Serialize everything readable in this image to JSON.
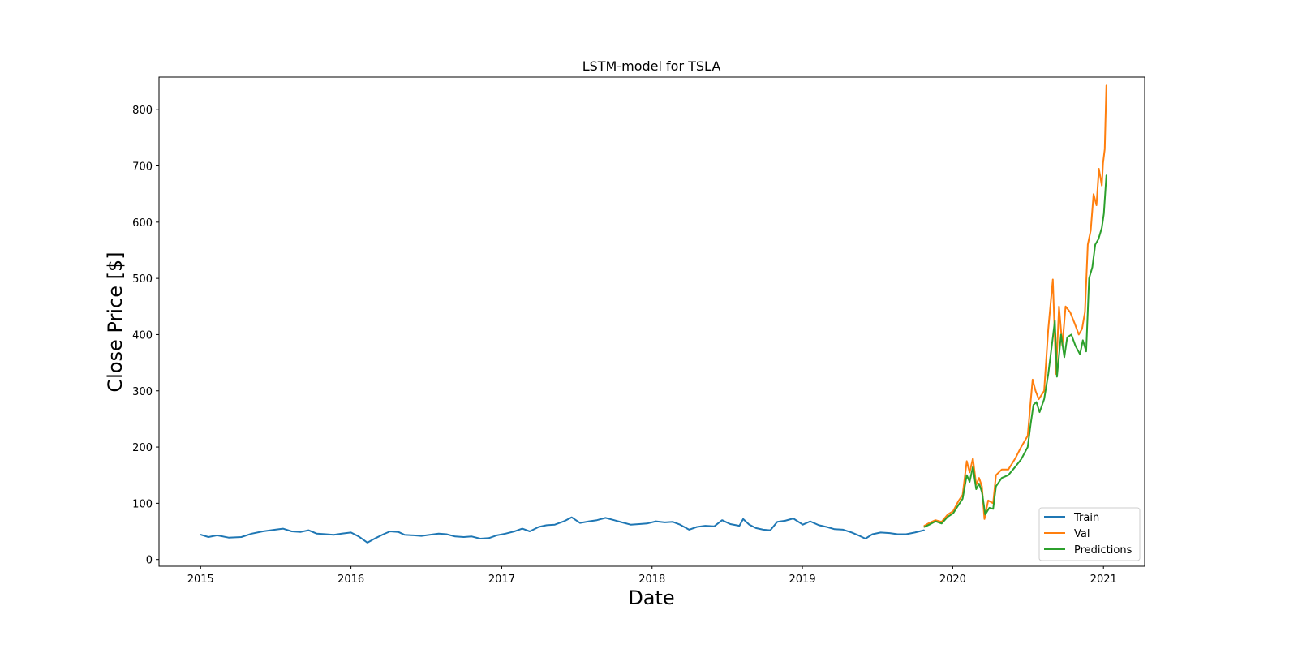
{
  "chart_data": {
    "type": "line",
    "title": "LSTM-model for TSLA",
    "xlabel": "Date",
    "ylabel": "Close Price [$]",
    "x_ticks": [
      "2015",
      "2016",
      "2017",
      "2018",
      "2019",
      "2020",
      "2021"
    ],
    "y_ticks": [
      0,
      100,
      200,
      300,
      400,
      500,
      600,
      700,
      800
    ],
    "xlim": [
      "2014-09-22",
      "2021-04-11"
    ],
    "ylim": [
      -12,
      858
    ],
    "grid": false,
    "legend_position": "lower-right",
    "series": [
      {
        "name": "Train",
        "color": "#1f77b4",
        "points": [
          [
            "2015-01-02",
            44
          ],
          [
            "2015-01-20",
            40
          ],
          [
            "2015-02-10",
            43
          ],
          [
            "2015-03-10",
            39
          ],
          [
            "2015-04-10",
            40
          ],
          [
            "2015-05-05",
            46
          ],
          [
            "2015-06-01",
            50
          ],
          [
            "2015-07-01",
            53
          ],
          [
            "2015-07-20",
            55
          ],
          [
            "2015-08-10",
            50
          ],
          [
            "2015-09-01",
            49
          ],
          [
            "2015-09-20",
            52
          ],
          [
            "2015-10-10",
            46
          ],
          [
            "2015-11-01",
            45
          ],
          [
            "2015-11-20",
            44
          ],
          [
            "2015-12-10",
            46
          ],
          [
            "2016-01-01",
            48
          ],
          [
            "2016-01-20",
            41
          ],
          [
            "2016-02-10",
            30
          ],
          [
            "2016-03-01",
            38
          ],
          [
            "2016-03-20",
            45
          ],
          [
            "2016-04-05",
            50
          ],
          [
            "2016-04-25",
            49
          ],
          [
            "2016-05-10",
            44
          ],
          [
            "2016-06-01",
            43
          ],
          [
            "2016-06-20",
            42
          ],
          [
            "2016-07-10",
            44
          ],
          [
            "2016-08-01",
            46
          ],
          [
            "2016-08-20",
            45
          ],
          [
            "2016-09-10",
            41
          ],
          [
            "2016-10-01",
            40
          ],
          [
            "2016-10-20",
            41
          ],
          [
            "2016-11-10",
            37
          ],
          [
            "2016-12-01",
            38
          ],
          [
            "2016-12-20",
            43
          ],
          [
            "2017-01-10",
            46
          ],
          [
            "2017-02-01",
            50
          ],
          [
            "2017-02-20",
            55
          ],
          [
            "2017-03-10",
            50
          ],
          [
            "2017-04-01",
            58
          ],
          [
            "2017-04-20",
            61
          ],
          [
            "2017-05-10",
            62
          ],
          [
            "2017-06-01",
            68
          ],
          [
            "2017-06-20",
            75
          ],
          [
            "2017-07-10",
            65
          ],
          [
            "2017-08-01",
            68
          ],
          [
            "2017-08-20",
            70
          ],
          [
            "2017-09-10",
            74
          ],
          [
            "2017-10-01",
            70
          ],
          [
            "2017-10-20",
            66
          ],
          [
            "2017-11-10",
            62
          ],
          [
            "2017-12-01",
            63
          ],
          [
            "2017-12-20",
            64
          ],
          [
            "2018-01-10",
            68
          ],
          [
            "2018-02-01",
            66
          ],
          [
            "2018-02-20",
            67
          ],
          [
            "2018-03-10",
            62
          ],
          [
            "2018-04-01",
            53
          ],
          [
            "2018-04-20",
            58
          ],
          [
            "2018-05-10",
            60
          ],
          [
            "2018-06-01",
            59
          ],
          [
            "2018-06-20",
            70
          ],
          [
            "2018-07-10",
            63
          ],
          [
            "2018-08-01",
            60
          ],
          [
            "2018-08-10",
            72
          ],
          [
            "2018-08-25",
            62
          ],
          [
            "2018-09-10",
            56
          ],
          [
            "2018-09-28",
            53
          ],
          [
            "2018-10-15",
            52
          ],
          [
            "2018-11-01",
            67
          ],
          [
            "2018-11-20",
            69
          ],
          [
            "2018-12-10",
            73
          ],
          [
            "2019-01-02",
            62
          ],
          [
            "2019-01-20",
            68
          ],
          [
            "2019-02-10",
            61
          ],
          [
            "2019-03-01",
            58
          ],
          [
            "2019-03-20",
            54
          ],
          [
            "2019-04-10",
            53
          ],
          [
            "2019-05-01",
            48
          ],
          [
            "2019-05-20",
            42
          ],
          [
            "2019-06-03",
            37
          ],
          [
            "2019-06-20",
            45
          ],
          [
            "2019-07-10",
            48
          ],
          [
            "2019-08-01",
            47
          ],
          [
            "2019-08-20",
            45
          ],
          [
            "2019-09-10",
            45
          ],
          [
            "2019-10-01",
            48
          ],
          [
            "2019-10-23",
            52
          ]
        ]
      },
      {
        "name": "Val",
        "color": "#ff7f0e",
        "points": [
          [
            "2019-10-24",
            60
          ],
          [
            "2019-11-05",
            65
          ],
          [
            "2019-11-20",
            70
          ],
          [
            "2019-12-05",
            67
          ],
          [
            "2019-12-20",
            80
          ],
          [
            "2020-01-02",
            86
          ],
          [
            "2020-01-15",
            104
          ],
          [
            "2020-01-25",
            115
          ],
          [
            "2020-02-04",
            175
          ],
          [
            "2020-02-11",
            155
          ],
          [
            "2020-02-19",
            180
          ],
          [
            "2020-02-27",
            133
          ],
          [
            "2020-03-05",
            145
          ],
          [
            "2020-03-12",
            130
          ],
          [
            "2020-03-18",
            72
          ],
          [
            "2020-03-27",
            105
          ],
          [
            "2020-04-08",
            100
          ],
          [
            "2020-04-15",
            150
          ],
          [
            "2020-04-29",
            160
          ],
          [
            "2020-05-15",
            160
          ],
          [
            "2020-06-01",
            180
          ],
          [
            "2020-06-15",
            200
          ],
          [
            "2020-07-01",
            220
          ],
          [
            "2020-07-08",
            280
          ],
          [
            "2020-07-13",
            320
          ],
          [
            "2020-07-20",
            300
          ],
          [
            "2020-07-28",
            285
          ],
          [
            "2020-08-10",
            300
          ],
          [
            "2020-08-20",
            410
          ],
          [
            "2020-08-31",
            498
          ],
          [
            "2020-09-08",
            330
          ],
          [
            "2020-09-15",
            450
          ],
          [
            "2020-09-23",
            380
          ],
          [
            "2020-10-01",
            450
          ],
          [
            "2020-10-12",
            440
          ],
          [
            "2020-10-23",
            420
          ],
          [
            "2020-11-02",
            400
          ],
          [
            "2020-11-10",
            410
          ],
          [
            "2020-11-17",
            440
          ],
          [
            "2020-11-24",
            560
          ],
          [
            "2020-12-01",
            585
          ],
          [
            "2020-12-08",
            650
          ],
          [
            "2020-12-15",
            630
          ],
          [
            "2020-12-21",
            695
          ],
          [
            "2020-12-28",
            665
          ],
          [
            "2020-12-31",
            705
          ],
          [
            "2021-01-04",
            730
          ],
          [
            "2021-01-08",
            843
          ]
        ]
      },
      {
        "name": "Predictions",
        "color": "#2ca02c",
        "points": [
          [
            "2019-10-24",
            58
          ],
          [
            "2019-11-05",
            62
          ],
          [
            "2019-11-20",
            68
          ],
          [
            "2019-12-05",
            64
          ],
          [
            "2019-12-20",
            76
          ],
          [
            "2020-01-02",
            82
          ],
          [
            "2020-01-15",
            97
          ],
          [
            "2020-01-25",
            108
          ],
          [
            "2020-02-04",
            150
          ],
          [
            "2020-02-11",
            138
          ],
          [
            "2020-02-19",
            165
          ],
          [
            "2020-02-27",
            125
          ],
          [
            "2020-03-05",
            135
          ],
          [
            "2020-03-12",
            120
          ],
          [
            "2020-03-20",
            80
          ],
          [
            "2020-03-30",
            92
          ],
          [
            "2020-04-08",
            90
          ],
          [
            "2020-04-15",
            130
          ],
          [
            "2020-04-29",
            145
          ],
          [
            "2020-05-15",
            150
          ],
          [
            "2020-06-01",
            165
          ],
          [
            "2020-06-15",
            178
          ],
          [
            "2020-07-01",
            200
          ],
          [
            "2020-07-08",
            240
          ],
          [
            "2020-07-15",
            275
          ],
          [
            "2020-07-22",
            280
          ],
          [
            "2020-07-30",
            262
          ],
          [
            "2020-08-10",
            285
          ],
          [
            "2020-08-20",
            330
          ],
          [
            "2020-08-31",
            395
          ],
          [
            "2020-09-05",
            425
          ],
          [
            "2020-09-10",
            325
          ],
          [
            "2020-09-20",
            400
          ],
          [
            "2020-09-28",
            360
          ],
          [
            "2020-10-05",
            395
          ],
          [
            "2020-10-15",
            400
          ],
          [
            "2020-10-25",
            380
          ],
          [
            "2020-11-05",
            365
          ],
          [
            "2020-11-12",
            390
          ],
          [
            "2020-11-20",
            370
          ],
          [
            "2020-11-27",
            500
          ],
          [
            "2020-12-05",
            520
          ],
          [
            "2020-12-12",
            560
          ],
          [
            "2020-12-20",
            570
          ],
          [
            "2020-12-28",
            590
          ],
          [
            "2021-01-02",
            615
          ],
          [
            "2021-01-08",
            683
          ]
        ]
      }
    ]
  }
}
